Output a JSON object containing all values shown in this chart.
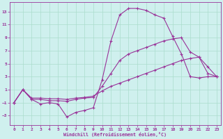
{
  "xlabel": "Windchill (Refroidissement éolien,°C)",
  "background_color": "#cff0ee",
  "grid_color": "#aaddcc",
  "line_color": "#993399",
  "xlim": [
    -0.5,
    23.5
  ],
  "ylim": [
    -4.5,
    14.5
  ],
  "xticks": [
    0,
    1,
    2,
    3,
    4,
    5,
    6,
    7,
    8,
    9,
    10,
    11,
    12,
    13,
    14,
    15,
    16,
    17,
    18,
    19,
    20,
    21,
    22,
    23
  ],
  "yticks": [
    -3,
    -1,
    1,
    3,
    5,
    7,
    9,
    11,
    13
  ],
  "series": [
    {
      "x": [
        0,
        1,
        2,
        3,
        4,
        5,
        6,
        7,
        8,
        9,
        10,
        11,
        12,
        13,
        14,
        15,
        16,
        17,
        18,
        19,
        20,
        21,
        22,
        23
      ],
      "y": [
        -1.0,
        1.0,
        -0.5,
        -1.2,
        -1.0,
        -1.2,
        -3.2,
        -2.5,
        -2.2,
        -1.8,
        2.5,
        8.5,
        12.5,
        13.5,
        13.5,
        13.2,
        12.5,
        12.0,
        9.2,
        6.5,
        3.0,
        2.8,
        3.0,
        3.0
      ]
    },
    {
      "x": [
        0,
        1,
        2,
        3,
        4,
        5,
        6,
        7,
        8,
        9,
        10,
        11,
        12,
        13,
        14,
        15,
        16,
        17,
        18,
        19,
        20,
        21,
        22,
        23
      ],
      "y": [
        -1.0,
        1.0,
        -0.5,
        -0.5,
        -0.7,
        -0.7,
        -0.8,
        -0.5,
        -0.3,
        -0.2,
        1.5,
        3.5,
        5.5,
        6.5,
        7.0,
        7.5,
        8.0,
        8.5,
        8.8,
        9.0,
        6.8,
        6.0,
        3.5,
        3.0
      ]
    },
    {
      "x": [
        0,
        1,
        2,
        3,
        4,
        5,
        6,
        7,
        8,
        9,
        10,
        11,
        12,
        13,
        14,
        15,
        16,
        17,
        18,
        19,
        20,
        21,
        22,
        23
      ],
      "y": [
        -1.0,
        1.0,
        -0.3,
        -0.3,
        -0.4,
        -0.4,
        -0.5,
        -0.3,
        -0.2,
        0.0,
        0.8,
        1.5,
        2.0,
        2.5,
        3.0,
        3.5,
        4.0,
        4.5,
        5.0,
        5.5,
        5.8,
        6.0,
        4.5,
        3.0
      ]
    }
  ]
}
